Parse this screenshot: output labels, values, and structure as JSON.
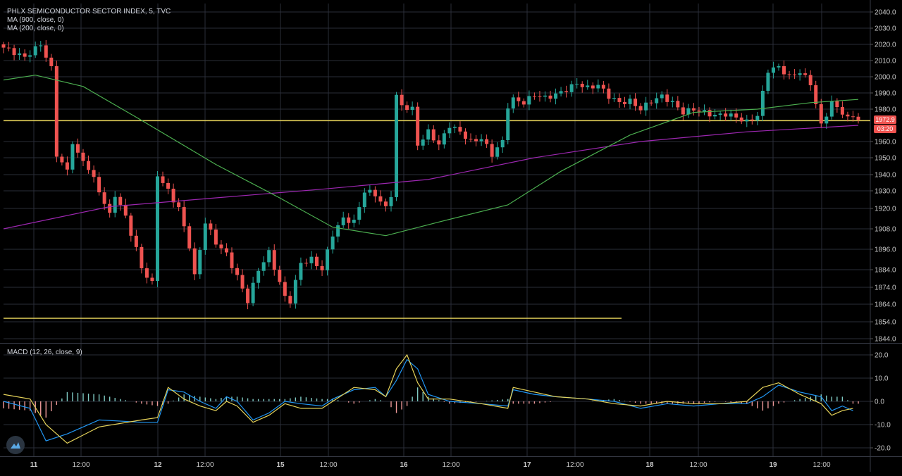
{
  "legend": {
    "title": "PHLX SEMICONDUCTOR SECTOR INDEX, 5, TVC",
    "ma900": "MA (900, close, 0)",
    "ma200": "MA (200, close, 0)",
    "macd": "MACD (12, 26, close, 9)"
  },
  "price_axis": {
    "ticks": [
      "2040.0",
      "2030.0",
      "2020.0",
      "2010.0",
      "2000.0",
      "1990.0",
      "1980.0",
      "1960.0",
      "1950.0",
      "1940.0",
      "1930.0",
      "1920.0",
      "1908.0",
      "1896.0",
      "1884.0",
      "1874.0",
      "1864.0",
      "1854.0",
      "1844.0"
    ],
    "last_price": "1972.9",
    "countdown": "03:20"
  },
  "macd_axis": {
    "ticks": [
      "20.0",
      "10.0",
      "0.0",
      "-10.0",
      "-20.0"
    ]
  },
  "time_axis": {
    "labels": [
      "11",
      "12:00",
      "12",
      "12:00",
      "15",
      "12:00",
      "16",
      "12:00",
      "17",
      "12:00",
      "18",
      "12:00",
      "19",
      "12:00"
    ]
  },
  "colors": {
    "background": "#000000",
    "grid": "#2a2e39",
    "bull": "#26a69a",
    "bear": "#ef5350",
    "ma900": "#9c27b0",
    "ma200": "#4caf50",
    "hline": "#e6d35a",
    "macd_line": "#2196f3",
    "signal_line": "#e6d35a"
  },
  "chart_data": {
    "type": "candlestick",
    "price_range": [
      1840,
      2044
    ],
    "hlines": [
      1972.9,
      1856
    ],
    "close_path": [
      [
        0,
        2018
      ],
      [
        4,
        2012
      ],
      [
        7,
        2020
      ],
      [
        9,
        2005
      ],
      [
        10,
        1952
      ],
      [
        12,
        1942
      ],
      [
        13,
        1960
      ],
      [
        14,
        1952
      ],
      [
        16,
        1944
      ],
      [
        18,
        1930
      ],
      [
        20,
        1916
      ],
      [
        21,
        1928
      ],
      [
        23,
        1915
      ],
      [
        25,
        1896
      ],
      [
        26,
        1885
      ],
      [
        28,
        1876
      ],
      [
        29,
        1940
      ],
      [
        31,
        1930
      ],
      [
        33,
        1920
      ],
      [
        35,
        1898
      ],
      [
        36,
        1880
      ],
      [
        38,
        1912
      ],
      [
        40,
        1900
      ],
      [
        42,
        1893
      ],
      [
        44,
        1880
      ],
      [
        46,
        1866
      ],
      [
        48,
        1884
      ],
      [
        50,
        1894
      ],
      [
        53,
        1868
      ],
      [
        54,
        1866
      ],
      [
        56,
        1888
      ],
      [
        58,
        1890
      ],
      [
        60,
        1884
      ],
      [
        62,
        1905
      ],
      [
        64,
        1914
      ],
      [
        66,
        1912
      ],
      [
        68,
        1930
      ],
      [
        70,
        1928
      ],
      [
        72,
        1920
      ],
      [
        73,
        1928
      ],
      [
        74,
        1988
      ],
      [
        75,
        1982
      ],
      [
        77,
        1980
      ],
      [
        78,
        1958
      ],
      [
        80,
        1966
      ],
      [
        82,
        1958
      ],
      [
        84,
        1970
      ],
      [
        86,
        1966
      ],
      [
        88,
        1960
      ],
      [
        90,
        1962
      ],
      [
        92,
        1952
      ],
      [
        94,
        1960
      ],
      [
        95,
        1982
      ],
      [
        96,
        1986
      ],
      [
        98,
        1984
      ],
      [
        100,
        1989
      ],
      [
        102,
        1987
      ],
      [
        104,
        1989
      ],
      [
        106,
        1992
      ],
      [
        108,
        1996
      ],
      [
        110,
        1993
      ],
      [
        112,
        1995
      ],
      [
        114,
        1988
      ],
      [
        116,
        1984
      ],
      [
        118,
        1985
      ],
      [
        120,
        1980
      ],
      [
        122,
        1985
      ],
      [
        124,
        1988
      ],
      [
        126,
        1984
      ],
      [
        128,
        1978
      ],
      [
        130,
        1980
      ],
      [
        132,
        1978
      ],
      [
        134,
        1976
      ],
      [
        136,
        1977
      ],
      [
        138,
        1975
      ],
      [
        140,
        1972
      ],
      [
        142,
        1976
      ],
      [
        144,
        2004
      ],
      [
        146,
        2006
      ],
      [
        148,
        2000
      ],
      [
        150,
        2003
      ],
      [
        152,
        1996
      ],
      [
        154,
        1970
      ],
      [
        156,
        1984
      ],
      [
        158,
        1978
      ],
      [
        159,
        1974
      ],
      [
        160,
        1976
      ],
      [
        161,
        1974
      ]
    ],
    "ma900": {
      "name": "MA (900, close, 0)",
      "points": [
        [
          0,
          1908
        ],
        [
          20,
          1921
        ],
        [
          40,
          1926
        ],
        [
          60,
          1931
        ],
        [
          80,
          1937
        ],
        [
          100,
          1950
        ],
        [
          120,
          1960
        ],
        [
          140,
          1966
        ],
        [
          161,
          1970
        ]
      ]
    },
    "ma200": {
      "name": "MA (200, close, 0)",
      "points": [
        [
          0,
          1998
        ],
        [
          6,
          2001
        ],
        [
          15,
          1994
        ],
        [
          25,
          1975
        ],
        [
          40,
          1946
        ],
        [
          52,
          1926
        ],
        [
          62,
          1909
        ],
        [
          72,
          1904
        ],
        [
          82,
          1912
        ],
        [
          95,
          1922
        ],
        [
          105,
          1942
        ],
        [
          118,
          1964
        ],
        [
          130,
          1978
        ],
        [
          142,
          1980
        ],
        [
          152,
          1984
        ],
        [
          161,
          1986
        ]
      ]
    },
    "macd": {
      "range": [
        -22,
        22
      ],
      "macd_line": [
        [
          0,
          0
        ],
        [
          5,
          -3
        ],
        [
          8,
          -17
        ],
        [
          12,
          -14
        ],
        [
          18,
          -8
        ],
        [
          26,
          -9
        ],
        [
          29,
          -9
        ],
        [
          31,
          5
        ],
        [
          34,
          4
        ],
        [
          37,
          0
        ],
        [
          40,
          -3
        ],
        [
          42,
          2
        ],
        [
          44,
          0
        ],
        [
          47,
          -8
        ],
        [
          50,
          -5
        ],
        [
          53,
          0
        ],
        [
          56,
          -1
        ],
        [
          60,
          -2
        ],
        [
          62,
          1
        ],
        [
          66,
          5
        ],
        [
          70,
          6
        ],
        [
          72,
          2
        ],
        [
          74,
          9
        ],
        [
          76,
          18
        ],
        [
          78,
          14
        ],
        [
          80,
          3
        ],
        [
          84,
          0
        ],
        [
          90,
          -1
        ],
        [
          95,
          -2
        ],
        [
          96,
          5
        ],
        [
          100,
          3
        ],
        [
          104,
          2
        ],
        [
          110,
          1
        ],
        [
          115,
          0
        ],
        [
          120,
          -3
        ],
        [
          125,
          -1
        ],
        [
          130,
          -2
        ],
        [
          135,
          -1
        ],
        [
          140,
          -1
        ],
        [
          143,
          2
        ],
        [
          146,
          7
        ],
        [
          150,
          4
        ],
        [
          154,
          2
        ],
        [
          156,
          -4
        ],
        [
          158,
          -2
        ],
        [
          160,
          -4
        ]
      ],
      "signal_line": [
        [
          0,
          3
        ],
        [
          5,
          1
        ],
        [
          8,
          -10
        ],
        [
          12,
          -18
        ],
        [
          18,
          -11
        ],
        [
          26,
          -8
        ],
        [
          29,
          -7
        ],
        [
          31,
          6
        ],
        [
          34,
          1
        ],
        [
          37,
          -2
        ],
        [
          40,
          -4
        ],
        [
          42,
          0
        ],
        [
          44,
          -2
        ],
        [
          47,
          -9
        ],
        [
          50,
          -6
        ],
        [
          53,
          -1
        ],
        [
          56,
          -3
        ],
        [
          60,
          -3
        ],
        [
          62,
          0
        ],
        [
          66,
          6
        ],
        [
          70,
          5
        ],
        [
          72,
          2
        ],
        [
          74,
          14
        ],
        [
          76,
          20
        ],
        [
          78,
          8
        ],
        [
          80,
          1
        ],
        [
          84,
          1
        ],
        [
          90,
          -1
        ],
        [
          95,
          -3
        ],
        [
          96,
          6
        ],
        [
          100,
          4
        ],
        [
          104,
          2
        ],
        [
          110,
          1
        ],
        [
          115,
          -1
        ],
        [
          120,
          -2
        ],
        [
          125,
          0
        ],
        [
          130,
          -1
        ],
        [
          135,
          -1
        ],
        [
          140,
          0
        ],
        [
          143,
          6
        ],
        [
          146,
          8
        ],
        [
          150,
          3
        ],
        [
          154,
          -1
        ],
        [
          156,
          -6
        ],
        [
          158,
          -4
        ],
        [
          160,
          -3
        ]
      ]
    }
  }
}
